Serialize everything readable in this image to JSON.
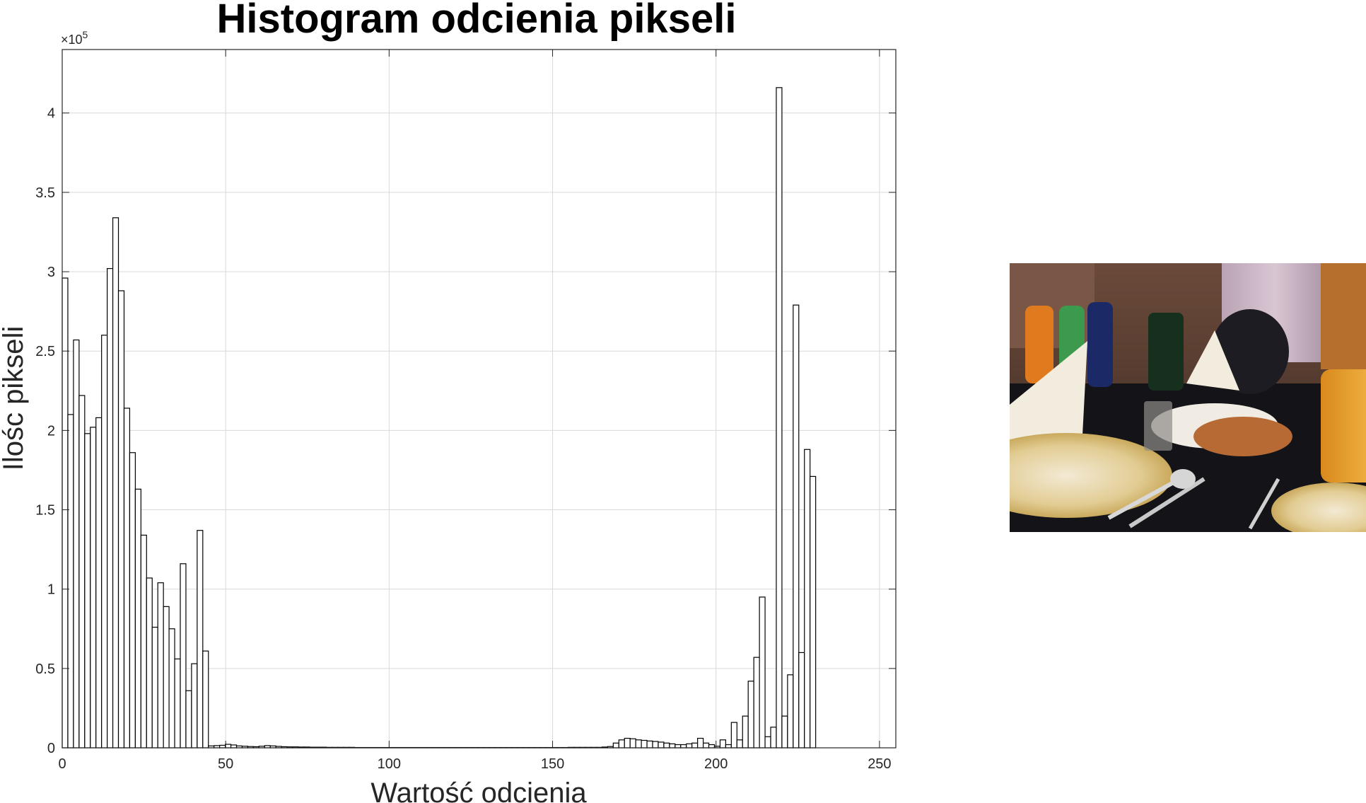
{
  "chart_data": {
    "type": "bar",
    "title": "Histogram odcienia pikseli",
    "xlabel": "Wartość odcienia",
    "ylabel": "Ilośc pikseli",
    "y_exponent_base": "×10",
    "y_exponent_power": "5",
    "xlim": [
      0,
      255
    ],
    "ylim": [
      0,
      4.4
    ],
    "grid": true,
    "bin_width": 1.72,
    "x_ticks": [
      0,
      50,
      100,
      150,
      200,
      250
    ],
    "x_tick_labels": [
      "0",
      "50",
      "100",
      "150",
      "200",
      "250"
    ],
    "y_ticks": [
      0,
      0.5,
      1,
      1.5,
      2,
      2.5,
      3,
      3.5,
      4
    ],
    "y_tick_labels": [
      "0",
      "0.5",
      "1",
      "1.5",
      "2",
      "2.5",
      "3",
      "3.5",
      "4"
    ],
    "values": [
      2.96,
      2.1,
      2.57,
      2.22,
      1.98,
      2.02,
      2.08,
      2.6,
      3.02,
      3.34,
      2.88,
      2.14,
      1.86,
      1.63,
      1.34,
      1.07,
      0.76,
      1.04,
      0.89,
      0.75,
      0.56,
      1.16,
      0.36,
      0.53,
      1.37,
      0.61,
      0.012,
      0.014,
      0.016,
      0.022,
      0.018,
      0.012,
      0.01,
      0.008,
      0.007,
      0.01,
      0.014,
      0.012,
      0.009,
      0.007,
      0.006,
      0.006,
      0.005,
      0.005,
      0.004,
      0.004,
      0.004,
      0.003,
      0.003,
      0.003,
      0.003,
      0.003,
      0.002,
      0.002,
      0.002,
      0.002,
      0.002,
      0.002,
      0.002,
      0.002,
      0.002,
      0.002,
      0.002,
      0.002,
      0.002,
      0.002,
      0.002,
      0.002,
      0.002,
      0.002,
      0.002,
      0.002,
      0.002,
      0.002,
      0.002,
      0.002,
      0.002,
      0.002,
      0.002,
      0.002,
      0.002,
      0.002,
      0.002,
      0.002,
      0.002,
      0.002,
      0.002,
      0.002,
      0.002,
      0.002,
      0.003,
      0.003,
      0.003,
      0.003,
      0.003,
      0.003,
      0.005,
      0.008,
      0.03,
      0.05,
      0.06,
      0.057,
      0.05,
      0.047,
      0.043,
      0.04,
      0.036,
      0.03,
      0.025,
      0.02,
      0.02,
      0.025,
      0.03,
      0.06,
      0.03,
      0.02,
      0.01,
      0.05,
      0.02,
      0.16,
      0.05,
      0.2,
      0.42,
      0.57,
      0.95,
      0.07,
      0.13,
      4.16,
      0.2,
      0.46,
      2.79,
      0.6,
      1.88,
      1.71
    ]
  },
  "side_image": {
    "description_hidden": true
  }
}
